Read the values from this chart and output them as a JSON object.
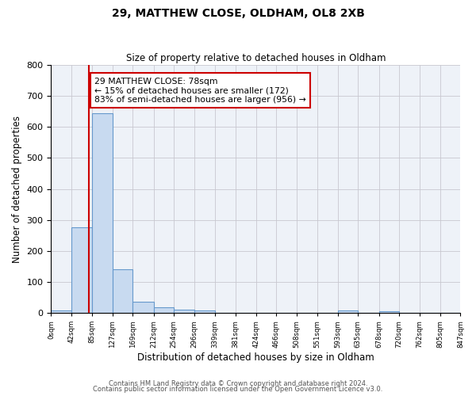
{
  "title1": "29, MATTHEW CLOSE, OLDHAM, OL8 2XB",
  "title2": "Size of property relative to detached houses in Oldham",
  "xlabel": "Distribution of detached houses by size in Oldham",
  "ylabel": "Number of detached properties",
  "bar_values": [
    7,
    275,
    645,
    140,
    37,
    18,
    11,
    8,
    0,
    0,
    0,
    0,
    0,
    0,
    8,
    0,
    5,
    0,
    0,
    0
  ],
  "bin_labels": [
    "0sqm",
    "42sqm",
    "85sqm",
    "127sqm",
    "169sqm",
    "212sqm",
    "254sqm",
    "296sqm",
    "339sqm",
    "381sqm",
    "424sqm",
    "466sqm",
    "508sqm",
    "551sqm",
    "593sqm",
    "635sqm",
    "678sqm",
    "720sqm",
    "762sqm",
    "805sqm",
    "847sqm"
  ],
  "bin_edges": [
    0,
    42,
    85,
    127,
    169,
    212,
    254,
    296,
    339,
    381,
    424,
    466,
    508,
    551,
    593,
    635,
    678,
    720,
    762,
    805,
    847
  ],
  "bar_color": "#c8daf0",
  "bar_edge_color": "#6699cc",
  "ref_line_x": 78,
  "ref_line_color": "#cc0000",
  "annotation_line1": "29 MATTHEW CLOSE: 78sqm",
  "annotation_line2": "← 15% of detached houses are smaller (172)",
  "annotation_line3": "83% of semi-detached houses are larger (956) →",
  "annotation_box_color": "#ffffff",
  "annotation_box_edge_color": "#cc0000",
  "ylim": [
    0,
    800
  ],
  "yticks": [
    0,
    100,
    200,
    300,
    400,
    500,
    600,
    700,
    800
  ],
  "footer1": "Contains HM Land Registry data © Crown copyright and database right 2024.",
  "footer2": "Contains public sector information licensed under the Open Government Licence v3.0.",
  "background_color": "#ffffff",
  "axes_bg_color": "#eef2f8",
  "grid_color": "#c8c8d0"
}
